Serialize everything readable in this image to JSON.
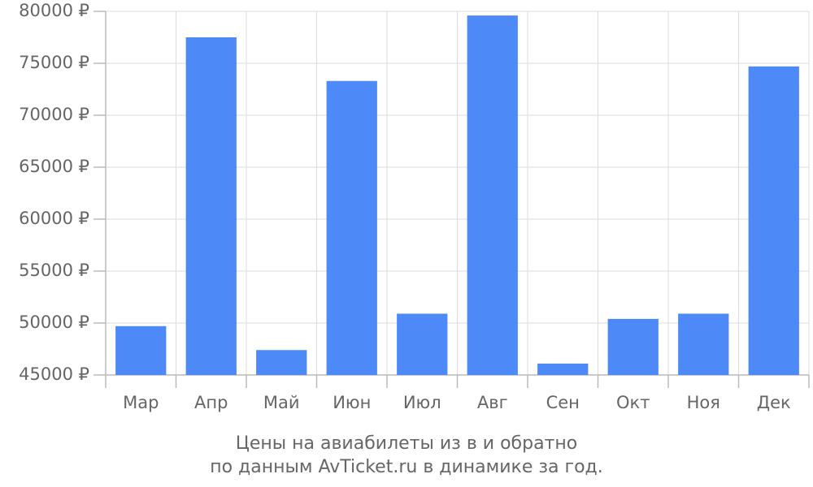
{
  "chart_data": {
    "type": "bar",
    "title": "Цены на авиабилеты из  в  и обратно",
    "subtitle": "по данным AvTicket.ru в динамике за год.",
    "categories": [
      "Мар",
      "Апр",
      "Май",
      "Июн",
      "Июл",
      "Авг",
      "Сен",
      "Окт",
      "Ноя",
      "Дек"
    ],
    "values": [
      49700,
      77500,
      47400,
      73300,
      50900,
      79600,
      46100,
      50400,
      50900,
      74700
    ],
    "color": "#4d8af8",
    "ylim": [
      45000,
      80000
    ],
    "yticks": [
      {
        "value": 45000,
        "label": "45000 ₽"
      },
      {
        "value": 50000,
        "label": "50000 ₽"
      },
      {
        "value": 55000,
        "label": "55000 ₽"
      },
      {
        "value": 60000,
        "label": "60000 ₽"
      },
      {
        "value": 65000,
        "label": "65000 ₽"
      },
      {
        "value": 70000,
        "label": "70000 ₽"
      },
      {
        "value": 75000,
        "label": "75000 ₽"
      },
      {
        "value": 80000,
        "label": "80000 ₽"
      }
    ],
    "grid": true
  }
}
